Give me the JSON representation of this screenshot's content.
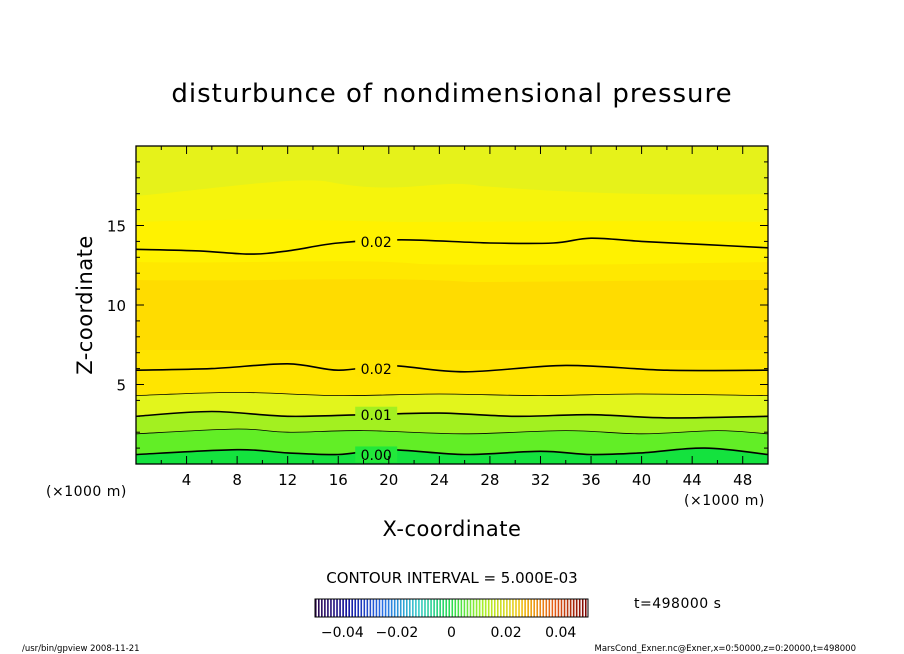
{
  "chart_data": {
    "type": "heatmap",
    "title": "disturbunce of nondimensional pressure",
    "xlabel": "X-coordinate",
    "ylabel": "Z-coordinate",
    "x_unit": "(×1000 m)",
    "y_unit": "(×1000 m)",
    "xlim": [
      0,
      50
    ],
    "ylim": [
      0,
      20
    ],
    "x_ticks": [
      4,
      8,
      12,
      16,
      20,
      24,
      28,
      32,
      36,
      40,
      44,
      48
    ],
    "y_ticks": [
      5,
      10,
      15
    ],
    "contour_interval_text": "CONTOUR INTERVAL = 5.000E-03",
    "time_text": "t=498000 s",
    "colorbar": {
      "range": [
        -0.05,
        0.05
      ],
      "tick_values": [
        -0.04,
        -0.02,
        0,
        0.02,
        0.04
      ],
      "tick_labels": [
        "−0.04",
        "−0.02",
        "0",
        "0.02",
        "0.04"
      ]
    },
    "contour_labels": [
      {
        "text": "0.02",
        "x": 17.5,
        "z": 14.0
      },
      {
        "text": "0.02",
        "x": 17.5,
        "z": 6.0
      },
      {
        "text": "0.01",
        "x": 17.5,
        "z": 3.1
      },
      {
        "text": "0.00",
        "x": 17.5,
        "z": 0.6
      }
    ],
    "contours": [
      {
        "level": 0.0,
        "labeled": true,
        "x": [
          0,
          8,
          12,
          16,
          20,
          26,
          32,
          36,
          40,
          45,
          50
        ],
        "z": [
          0.6,
          0.9,
          0.7,
          0.6,
          0.9,
          0.6,
          0.8,
          0.6,
          0.7,
          1.0,
          0.6
        ]
      },
      {
        "level": 0.005,
        "labeled": false,
        "x": [
          0,
          8,
          12,
          18,
          26,
          34,
          40,
          46,
          50
        ],
        "z": [
          1.9,
          2.2,
          2.0,
          2.1,
          1.9,
          2.1,
          1.9,
          2.1,
          1.9
        ]
      },
      {
        "level": 0.01,
        "labeled": true,
        "x": [
          0,
          6,
          12,
          18,
          24,
          30,
          36,
          42,
          50
        ],
        "z": [
          3.0,
          3.3,
          3.0,
          3.1,
          3.2,
          3.0,
          3.1,
          2.9,
          3.0
        ]
      },
      {
        "level": 0.015,
        "labeled": false,
        "x": [
          0,
          8,
          16,
          24,
          32,
          40,
          50
        ],
        "z": [
          4.3,
          4.5,
          4.3,
          4.4,
          4.3,
          4.4,
          4.3
        ]
      },
      {
        "level": 0.02,
        "labeled": true,
        "x": [
          0,
          6,
          12,
          16,
          20,
          26,
          34,
          42,
          50
        ],
        "z": [
          5.9,
          6.0,
          6.3,
          5.9,
          6.2,
          5.8,
          6.2,
          5.9,
          5.9
        ]
      },
      {
        "level": 0.02,
        "labeled": true,
        "x": [
          0,
          5,
          9,
          12,
          16,
          21,
          28,
          33,
          36,
          40,
          45,
          50
        ],
        "z": [
          13.5,
          13.4,
          13.2,
          13.4,
          13.9,
          14.1,
          13.9,
          13.9,
          14.2,
          14.0,
          13.8,
          13.6
        ]
      }
    ],
    "fill_bands": [
      {
        "name": "0.000-0.005",
        "color": "#22e83a"
      },
      {
        "name": "0.005-0.010",
        "color": "#62ee26"
      },
      {
        "name": "0.010-0.015",
        "color": "#a3f020"
      },
      {
        "name": "0.015-0.020",
        "color": "#e2f51c"
      },
      {
        "name": "0.020-0.025",
        "color": "#ffe500"
      },
      {
        "name": "0.025-0.030",
        "color": "#ffd700"
      }
    ]
  },
  "footer": {
    "left": "/usr/bin/gpview   2008-11-21",
    "right": "MarsCond_Exner.nc@Exner,x=0:50000,z=0:20000,t=498000"
  }
}
